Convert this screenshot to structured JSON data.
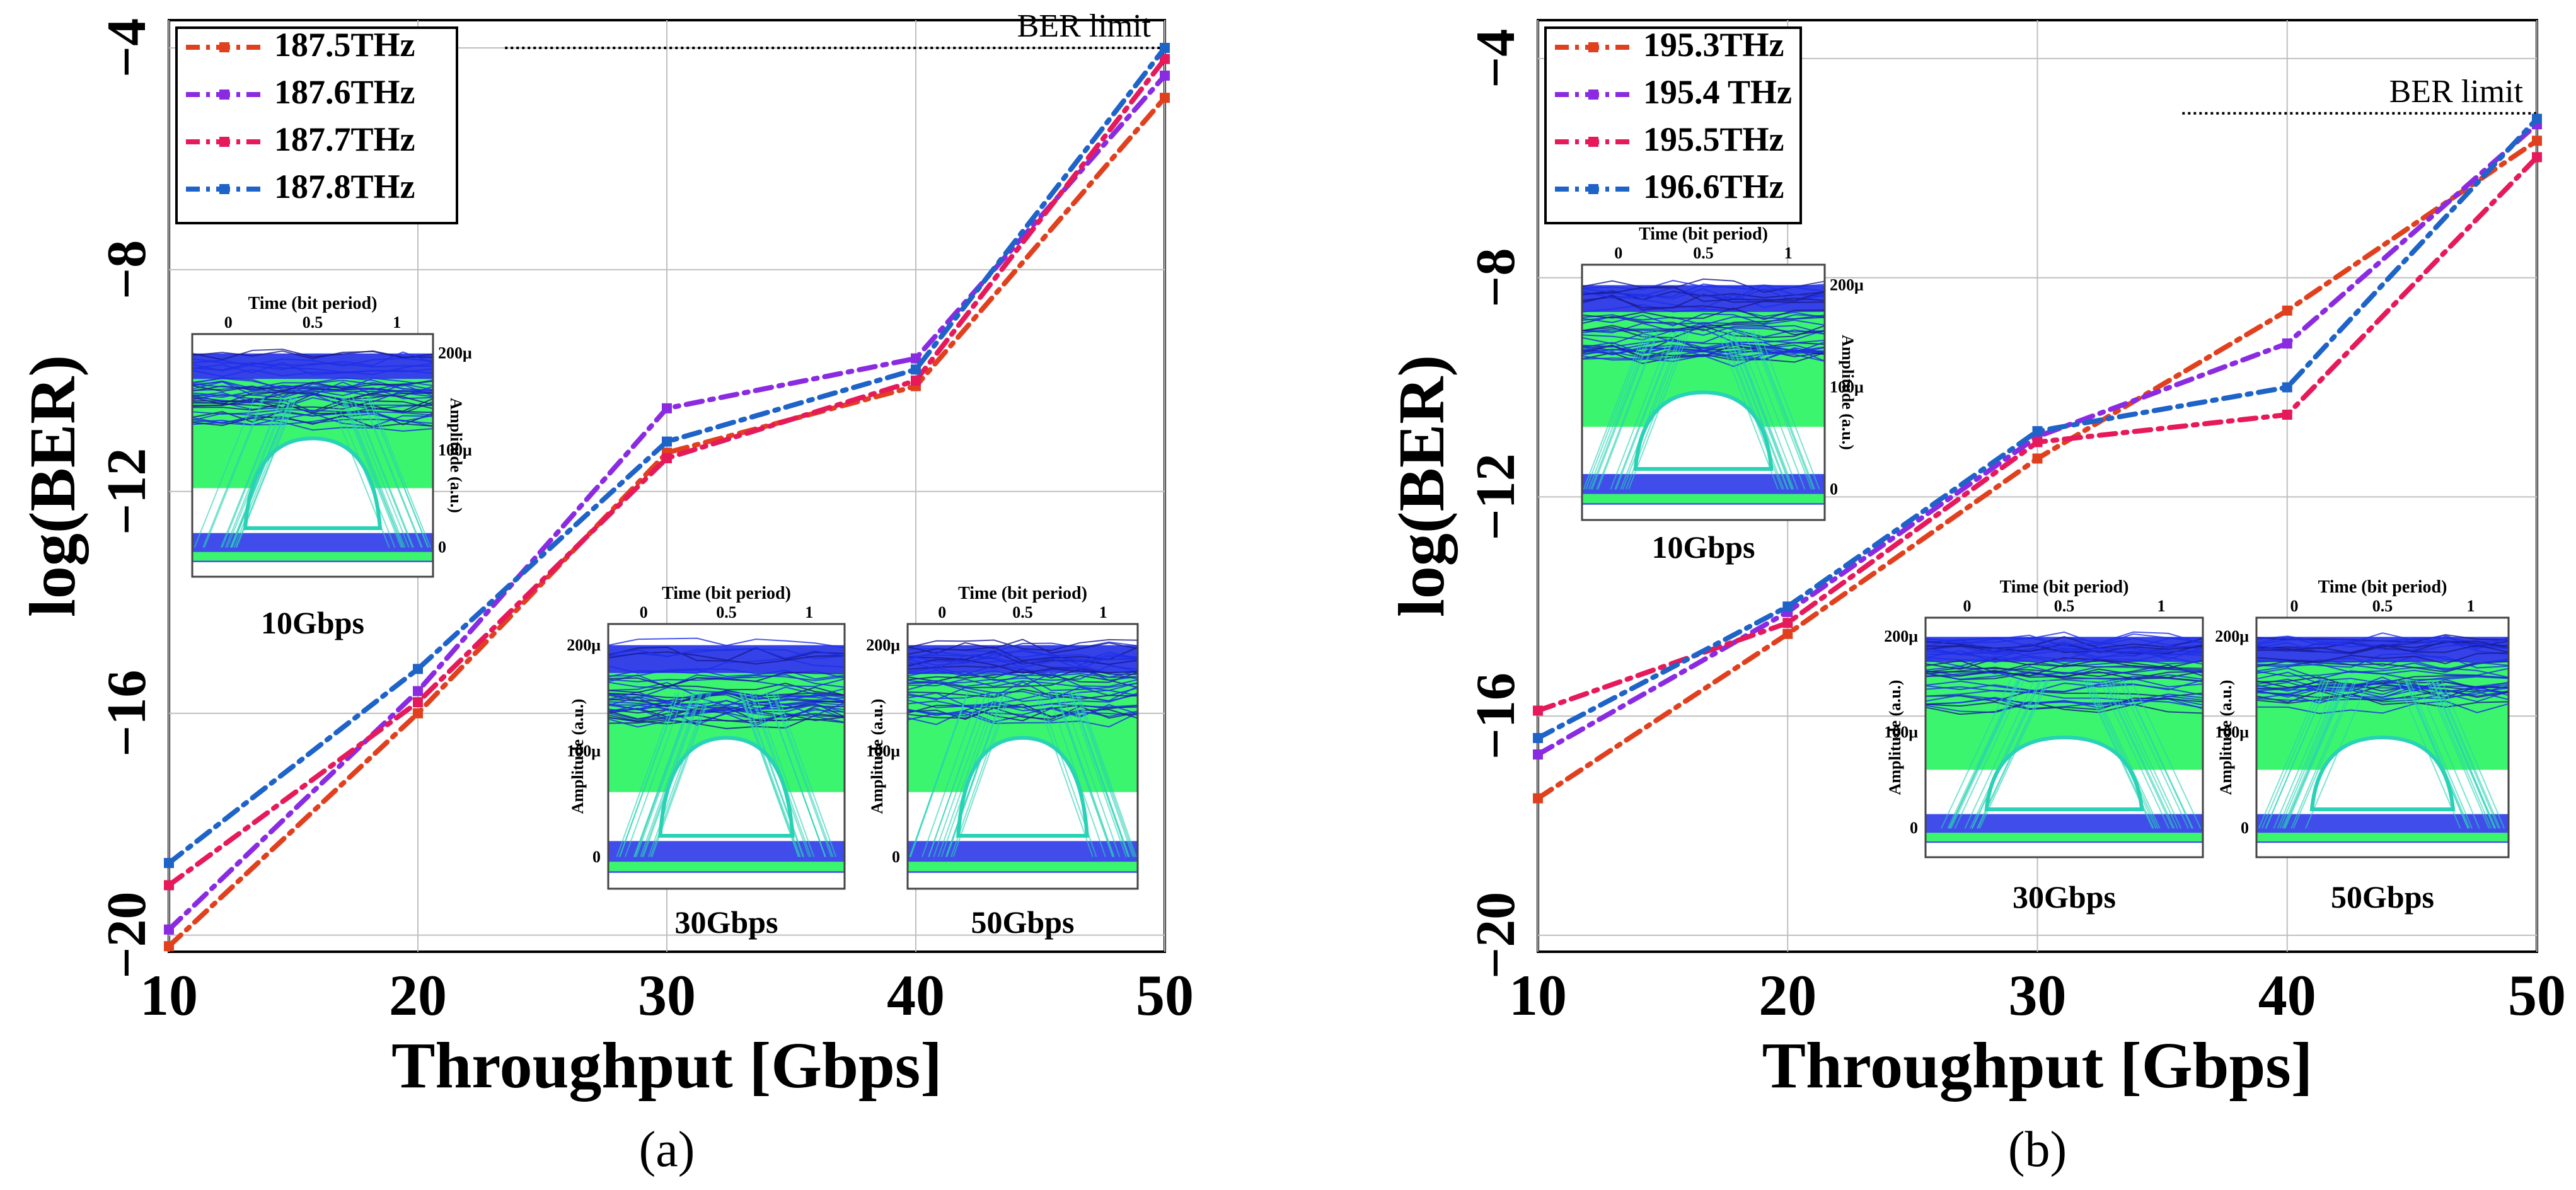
{
  "colors": {
    "red": "#e1401e",
    "purple": "#8a2be2",
    "crimson": "#e6195a",
    "blue": "#1e63c8",
    "eye_green": "#3cf56e",
    "eye_blue": "#1e2ee6",
    "eye_cyan": "#28d2b4"
  },
  "chart_data": [
    {
      "type": "line",
      "panel_caption": "(a)",
      "xlabel": "Throughput  [Gbps]",
      "ylabel": "log(BER)",
      "x": [
        10,
        20,
        30,
        40,
        50
      ],
      "xticks": [
        "10",
        "20",
        "30",
        "40",
        "50"
      ],
      "xlim": [
        10,
        50
      ],
      "ylim": [
        -20.3,
        -3.5
      ],
      "yticks": [
        {
          "value": -4,
          "label": "−4"
        },
        {
          "value": -8,
          "label": "−8"
        },
        {
          "value": -12,
          "label": "−12"
        },
        {
          "value": -16,
          "label": "−16"
        },
        {
          "value": -20,
          "label": "−20"
        }
      ],
      "grid": true,
      "legend_position": "top-left",
      "ber_limit": {
        "value": -4,
        "label": "BER limit",
        "start_x": 23.5
      },
      "series": [
        {
          "name": "187.5THz",
          "color": "#e1401e",
          "values": [
            -20.2,
            -16.0,
            -11.3,
            -10.1,
            -4.9
          ]
        },
        {
          "name": "187.6THz",
          "color": "#8a2be2",
          "values": [
            -19.9,
            -15.6,
            -10.5,
            -9.6,
            -4.5
          ]
        },
        {
          "name": "187.7THz",
          "color": "#e6195a",
          "values": [
            -19.1,
            -15.8,
            -11.4,
            -10.0,
            -4.2
          ]
        },
        {
          "name": "187.8THz",
          "color": "#1e63c8",
          "values": [
            -18.7,
            -15.2,
            -11.1,
            -9.8,
            -4.0
          ]
        }
      ],
      "insets": [
        {
          "label": "10Gbps",
          "axis_title": "Time (bit period)",
          "time_ticks": [
            "0",
            "0.5",
            "1"
          ],
          "amp_title": "Amplitude (a.u.)",
          "amp_ticks": [
            "200μ",
            "100μ",
            "0"
          ]
        },
        {
          "label": "30Gbps",
          "axis_title": "Time (bit period)",
          "time_ticks": [
            "0",
            "0.5",
            "1"
          ],
          "amp_title": "Amplitude (a.u.)",
          "amp_ticks": [
            "200μ",
            "100μ",
            "0"
          ]
        },
        {
          "label": "50Gbps",
          "axis_title": "Time (bit period)",
          "time_ticks": [
            "0",
            "0.5",
            "1"
          ],
          "amp_title": "Amplitude (a.u.)",
          "amp_ticks": [
            "200μ",
            "100μ",
            "0"
          ]
        }
      ]
    },
    {
      "type": "line",
      "panel_caption": "(b)",
      "xlabel": "Throughput  [Gbps]",
      "ylabel": "log(BER)",
      "x": [
        10,
        20,
        30,
        40,
        50
      ],
      "xticks": [
        "10",
        "20",
        "30",
        "40",
        "50"
      ],
      "xlim": [
        10,
        50
      ],
      "ylim": [
        -20.3,
        -3.3
      ],
      "yticks": [
        {
          "value": -4,
          "label": "−4"
        },
        {
          "value": -8,
          "label": "−8"
        },
        {
          "value": -12,
          "label": "−12"
        },
        {
          "value": -16,
          "label": "−16"
        },
        {
          "value": -20,
          "label": "−20"
        }
      ],
      "grid": true,
      "legend_position": "top-left",
      "ber_limit": {
        "value": -5,
        "label": "BER limit",
        "start_x": 35.8
      },
      "series": [
        {
          "name": "195.3THz",
          "color": "#e1401e",
          "values": [
            -17.5,
            -14.5,
            -11.3,
            -8.6,
            -5.5
          ]
        },
        {
          "name": "195.4 THz",
          "color": "#8a2be2",
          "values": [
            -16.7,
            -14.1,
            -10.9,
            -9.2,
            -5.2
          ]
        },
        {
          "name": "195.5THz",
          "color": "#e6195a",
          "values": [
            -15.9,
            -14.3,
            -11.0,
            -10.5,
            -5.8
          ]
        },
        {
          "name": "196.6THz",
          "color": "#1e63c8",
          "values": [
            -16.4,
            -14.0,
            -10.8,
            -10.0,
            -5.1
          ]
        }
      ],
      "insets": [
        {
          "label": "10Gbps",
          "axis_title": "Time (bit period)",
          "time_ticks": [
            "0",
            "0.5",
            "1"
          ],
          "amp_title": "Amplitude (a.u.)",
          "amp_ticks": [
            "200μ",
            "100μ",
            "0"
          ]
        },
        {
          "label": "30Gbps",
          "axis_title": "Time (bit period)",
          "time_ticks": [
            "0",
            "0.5",
            "1"
          ],
          "amp_title": "Amplitude (a.u.)",
          "amp_ticks": [
            "200μ",
            "100μ",
            "0"
          ]
        },
        {
          "label": "50Gbps",
          "axis_title": "Time (bit period)",
          "time_ticks": [
            "0",
            "0.5",
            "1"
          ],
          "amp_title": "Amplitude (a.u.)",
          "amp_ticks": [
            "200μ",
            "100μ",
            "0"
          ]
        }
      ]
    }
  ]
}
